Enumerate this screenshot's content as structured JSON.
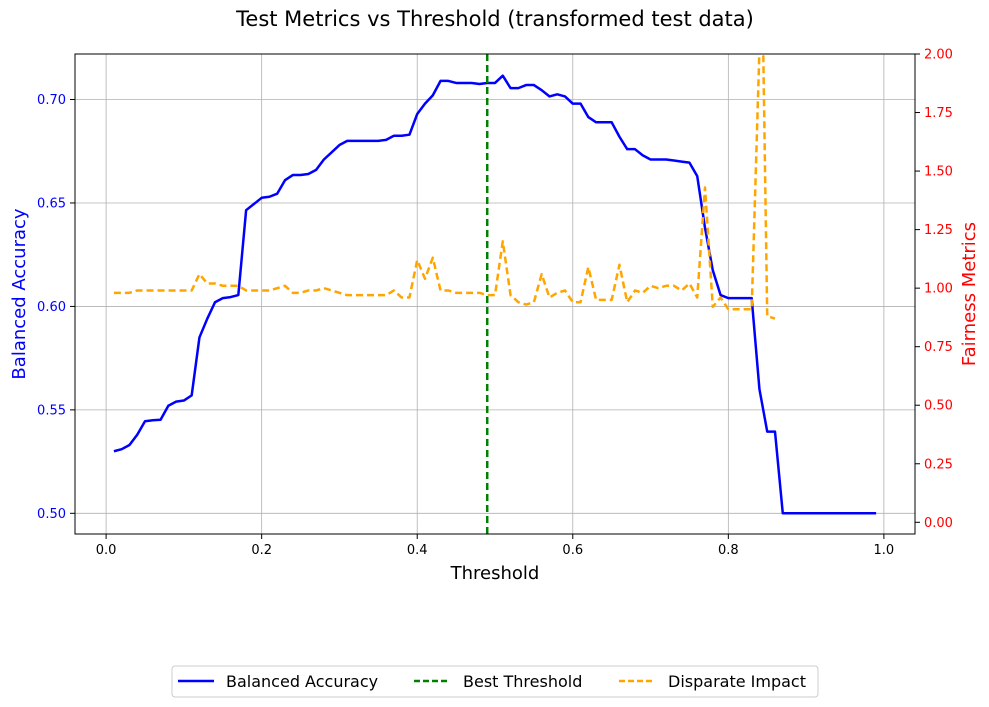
{
  "chart_data": {
    "type": "line",
    "title": "Test Metrics vs Threshold (transformed test data)",
    "xlabel": "Threshold",
    "ylabel_left": "Balanced Accuracy",
    "ylabel_right": "Fairness Metrics",
    "xlim": [
      -0.04,
      1.04
    ],
    "ylim_left": [
      0.49,
      0.722
    ],
    "ylim_right": [
      -0.05,
      2.0
    ],
    "x_ticks": [
      "0.0",
      "0.2",
      "0.4",
      "0.6",
      "0.8",
      "1.0"
    ],
    "y_left_ticks": [
      "0.50",
      "0.55",
      "0.60",
      "0.65",
      "0.70"
    ],
    "y_right_ticks": [
      "0.00",
      "0.25",
      "0.50",
      "0.75",
      "1.00",
      "1.25",
      "1.50",
      "1.75",
      "2.00"
    ],
    "grid": true,
    "legend_position": "bottom-center",
    "colors": {
      "balanced_accuracy": "#0000ff",
      "best_threshold": "#008000",
      "disparate_impact": "#ffa500",
      "left_axis": "#0000ff",
      "right_axis": "#ff0000",
      "grid": "#b0b0b0"
    },
    "series": [
      {
        "name": "Balanced Accuracy",
        "axis": "left",
        "style": "solid",
        "x": [
          0.01,
          0.02,
          0.03,
          0.04,
          0.05,
          0.06,
          0.07,
          0.08,
          0.09,
          0.1,
          0.11,
          0.12,
          0.13,
          0.14,
          0.15,
          0.16,
          0.17,
          0.18,
          0.19,
          0.2,
          0.21,
          0.22,
          0.23,
          0.24,
          0.25,
          0.26,
          0.27,
          0.28,
          0.29,
          0.3,
          0.31,
          0.32,
          0.33,
          0.34,
          0.35,
          0.36,
          0.37,
          0.38,
          0.39,
          0.4,
          0.41,
          0.42,
          0.43,
          0.44,
          0.45,
          0.46,
          0.47,
          0.48,
          0.49,
          0.5,
          0.51,
          0.52,
          0.53,
          0.54,
          0.55,
          0.56,
          0.57,
          0.58,
          0.59,
          0.6,
          0.61,
          0.62,
          0.63,
          0.64,
          0.65,
          0.66,
          0.67,
          0.68,
          0.69,
          0.7,
          0.71,
          0.72,
          0.73,
          0.74,
          0.75,
          0.76,
          0.77,
          0.78,
          0.79,
          0.8,
          0.81,
          0.82,
          0.83,
          0.84,
          0.85,
          0.86,
          0.87,
          0.88,
          0.89,
          0.9,
          0.91,
          0.92,
          0.93,
          0.94,
          0.95,
          0.96,
          0.97,
          0.98,
          0.99
        ],
        "y": [
          0.53,
          0.531,
          0.533,
          0.538,
          0.5445,
          0.545,
          0.5452,
          0.552,
          0.554,
          0.5545,
          0.557,
          0.585,
          0.594,
          0.602,
          0.604,
          0.6045,
          0.6055,
          0.6465,
          0.6495,
          0.6525,
          0.653,
          0.6545,
          0.661,
          0.6635,
          0.6635,
          0.664,
          0.666,
          0.671,
          0.6745,
          0.678,
          0.68,
          0.68,
          0.68,
          0.68,
          0.68,
          0.6805,
          0.6825,
          0.6825,
          0.683,
          0.693,
          0.698,
          0.702,
          0.709,
          0.709,
          0.708,
          0.708,
          0.708,
          0.7075,
          0.708,
          0.708,
          0.7115,
          0.7055,
          0.7055,
          0.707,
          0.707,
          0.7045,
          0.7015,
          0.7025,
          0.7015,
          0.698,
          0.698,
          0.6915,
          0.689,
          0.689,
          0.689,
          0.682,
          0.676,
          0.676,
          0.673,
          0.671,
          0.671,
          0.671,
          0.6705,
          0.67,
          0.6695,
          0.663,
          0.638,
          0.6175,
          0.6055,
          0.604,
          0.604,
          0.604,
          0.604,
          0.56,
          0.5395,
          0.5395,
          0.5,
          0.5,
          0.5,
          0.5,
          0.5,
          0.5,
          0.5,
          0.5,
          0.5,
          0.5,
          0.5,
          0.5,
          0.5
        ]
      },
      {
        "name": "Best Threshold",
        "axis": "left",
        "style": "vertical-dashed",
        "x_value": 0.49
      },
      {
        "name": "Disparate Impact",
        "axis": "right",
        "style": "dashed",
        "x": [
          0.01,
          0.02,
          0.03,
          0.04,
          0.05,
          0.06,
          0.07,
          0.08,
          0.09,
          0.1,
          0.11,
          0.12,
          0.13,
          0.14,
          0.15,
          0.16,
          0.17,
          0.18,
          0.19,
          0.2,
          0.21,
          0.22,
          0.23,
          0.24,
          0.25,
          0.26,
          0.27,
          0.28,
          0.29,
          0.3,
          0.31,
          0.32,
          0.33,
          0.34,
          0.35,
          0.36,
          0.37,
          0.38,
          0.39,
          0.4,
          0.41,
          0.42,
          0.43,
          0.44,
          0.45,
          0.46,
          0.47,
          0.48,
          0.49,
          0.5,
          0.51,
          0.52,
          0.53,
          0.54,
          0.55,
          0.56,
          0.57,
          0.58,
          0.59,
          0.6,
          0.61,
          0.62,
          0.63,
          0.64,
          0.65,
          0.66,
          0.67,
          0.68,
          0.69,
          0.7,
          0.71,
          0.72,
          0.73,
          0.74,
          0.75,
          0.76,
          0.77,
          0.78,
          0.79,
          0.8,
          0.81,
          0.82,
          0.83,
          0.84,
          0.845,
          0.85,
          0.86
        ],
        "y": [
          0.98,
          0.98,
          0.98,
          0.99,
          0.99,
          0.99,
          0.99,
          0.99,
          0.99,
          0.99,
          0.99,
          1.06,
          1.02,
          1.02,
          1.01,
          1.01,
          1.01,
          0.99,
          0.99,
          0.99,
          0.99,
          1.0,
          1.01,
          0.98,
          0.98,
          0.99,
          0.99,
          1.0,
          0.99,
          0.98,
          0.97,
          0.97,
          0.97,
          0.97,
          0.97,
          0.97,
          0.99,
          0.96,
          0.96,
          1.12,
          1.04,
          1.13,
          0.99,
          0.99,
          0.98,
          0.98,
          0.98,
          0.98,
          0.97,
          0.97,
          1.2,
          0.97,
          0.94,
          0.93,
          0.94,
          1.06,
          0.96,
          0.98,
          0.99,
          0.94,
          0.94,
          1.09,
          0.95,
          0.95,
          0.95,
          1.1,
          0.94,
          0.99,
          0.98,
          1.01,
          1.0,
          1.01,
          1.01,
          0.99,
          1.02,
          0.96,
          1.43,
          0.92,
          0.96,
          0.91,
          0.91,
          0.91,
          0.91,
          2.02,
          1.99,
          0.88,
          0.87
        ]
      }
    ]
  },
  "legend": {
    "items": [
      {
        "label": "Balanced Accuracy",
        "color": "#0000ff",
        "style": "solid"
      },
      {
        "label": "Best Threshold",
        "color": "#008000",
        "style": "dashed"
      },
      {
        "label": "Disparate Impact",
        "color": "#ffa500",
        "style": "dashed"
      }
    ]
  }
}
